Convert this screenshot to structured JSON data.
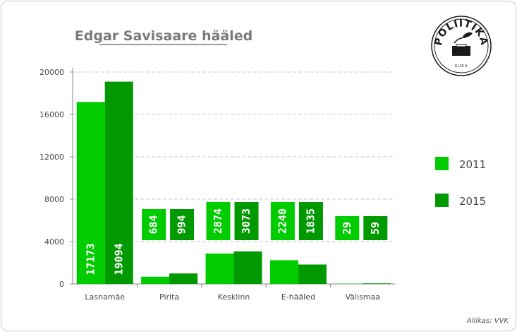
{
  "chart_data": {
    "type": "bar",
    "title": "Edgar Savisaare hääled",
    "categories": [
      "Lasnamäe",
      "Pirita",
      "Kesklinn",
      "E-hääled",
      "Välismaa"
    ],
    "series": [
      {
        "name": "2011",
        "values": [
          17173,
          684,
          2874,
          2240,
          29
        ],
        "color": "#00cc00"
      },
      {
        "name": "2015",
        "values": [
          19094,
          994,
          3073,
          1835,
          59
        ],
        "color": "#009900"
      }
    ],
    "yticks": [
      0,
      4000,
      8000,
      12000,
      16000,
      20000
    ],
    "ylim": [
      0,
      20000
    ],
    "grid": true,
    "legend": "right",
    "xlabel": "",
    "ylabel": ""
  },
  "logo": {
    "text": "POLIITIKA",
    "sub": "GURU"
  },
  "source": "Allikas: VVK"
}
